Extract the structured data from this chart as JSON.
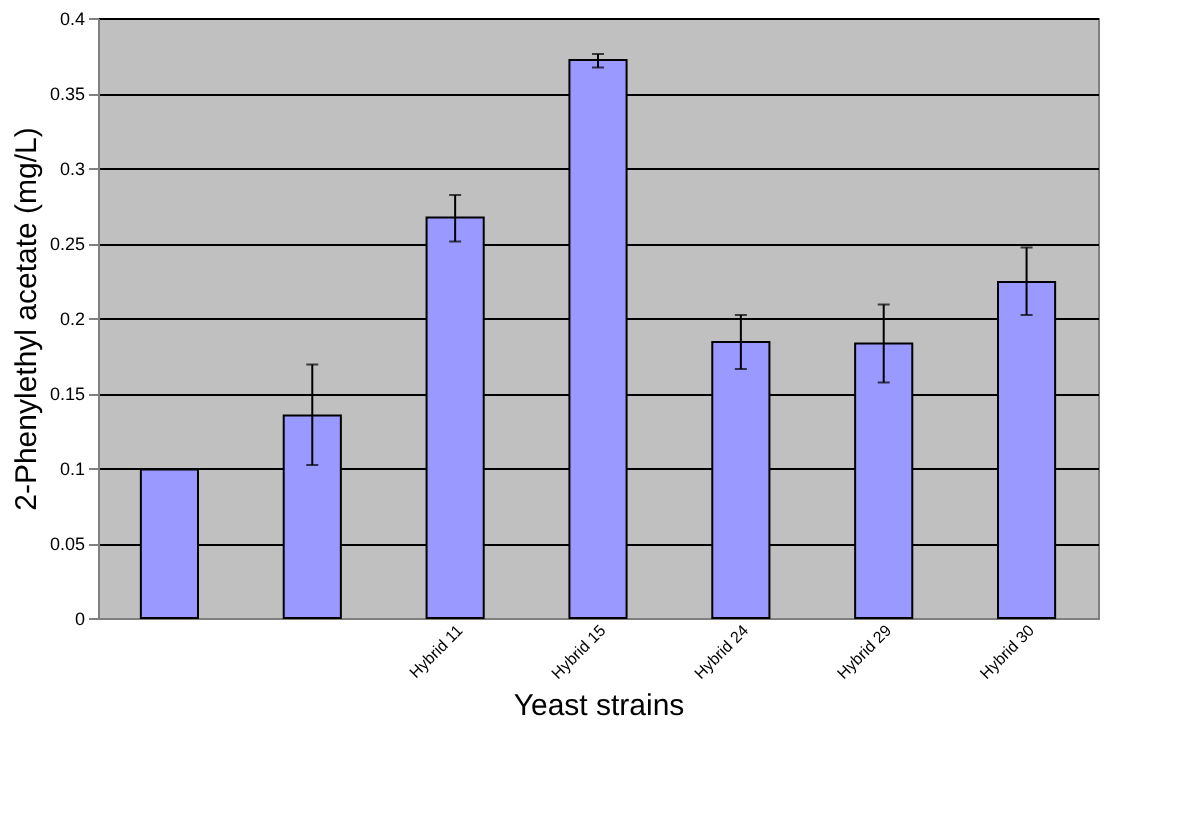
{
  "chart_data": {
    "type": "bar",
    "xlabel": "Yeast strains",
    "ylabel": "2-Phenylethyl acetate (mg/L)",
    "categories": [
      null,
      null,
      "Hybrid 11",
      "Hybrid 15",
      "Hybrid 24",
      "Hybrid 29",
      "Hybrid 30"
    ],
    "values": [
      0.099,
      0.135,
      0.267,
      0.372,
      0.184,
      0.183,
      0.224
    ],
    "errors": [
      null,
      [
        0.102,
        0.169
      ],
      [
        0.251,
        0.282
      ],
      [
        0.367,
        0.376
      ],
      [
        0.166,
        0.202
      ],
      [
        0.157,
        0.209
      ],
      [
        0.202,
        0.247
      ]
    ],
    "color": "#9999ff",
    "ylim": [
      0,
      0.4
    ],
    "yticks": [
      0,
      0.05,
      0.1,
      0.15,
      0.2,
      0.25,
      0.3,
      0.35,
      0.4
    ],
    "grid": "y"
  }
}
